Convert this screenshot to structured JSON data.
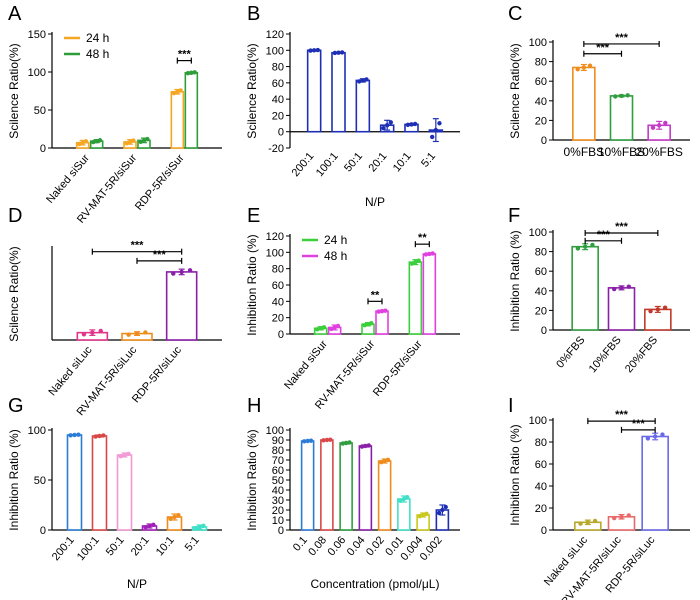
{
  "chart_data": [
    {
      "panel": "A",
      "type": "bar",
      "ylabel": "Scilence Ratio(%)",
      "xlabel": "",
      "ylim": [
        0,
        150
      ],
      "yticks": [
        0,
        50,
        100,
        150
      ],
      "categories": [
        "Naked siSur",
        "RV-MAT-5R/siSur",
        "RDP-5R/siSur"
      ],
      "legend": "top-left",
      "series": [
        {
          "name": "24 h",
          "color": "#f5a623",
          "values": [
            7,
            8,
            74
          ],
          "errors": [
            3,
            3,
            3
          ]
        },
        {
          "name": "48 h",
          "color": "#2e9e3b",
          "values": [
            9,
            10,
            99
          ],
          "errors": [
            2,
            3,
            1
          ]
        }
      ],
      "brackets": [
        {
          "label": "***",
          "from": [
            2,
            0
          ],
          "to": [
            2,
            1
          ],
          "y": 115
        }
      ]
    },
    {
      "panel": "B",
      "type": "bar",
      "ylabel": "Scilence Ratio(%)",
      "xlabel": "N/P",
      "ylim": [
        -20,
        120
      ],
      "yticks": [
        -20,
        0,
        20,
        40,
        60,
        80,
        100,
        120
      ],
      "categories": [
        "200:1",
        "100:1",
        "50:1",
        "20:1",
        "10:1",
        "5:1"
      ],
      "series": [
        {
          "color": "#1f2fb5",
          "values": [
            100,
            97,
            63,
            8,
            9,
            2
          ],
          "errors": [
            0.5,
            0.5,
            2,
            6,
            1,
            14
          ]
        }
      ],
      "brackets": []
    },
    {
      "panel": "C",
      "type": "bar",
      "ylabel": "Scilence Ratio(%)",
      "xlabel": "",
      "ylim": [
        0,
        100
      ],
      "yticks": [
        0,
        20,
        40,
        60,
        80,
        100
      ],
      "categories": [
        "0%FBS",
        "10%FBS",
        "20%FBS"
      ],
      "series": [
        {
          "colors": [
            "#f08c1c",
            "#2f9e3f",
            "#c63ac9"
          ],
          "values": [
            74,
            45,
            15
          ],
          "errors": [
            3,
            1,
            4
          ]
        }
      ],
      "brackets": [
        {
          "label": "***",
          "from": [
            0
          ],
          "to": [
            1
          ],
          "y": 88
        },
        {
          "label": "***",
          "from": [
            0
          ],
          "to": [
            2
          ],
          "y": 98
        }
      ]
    },
    {
      "panel": "D",
      "type": "bar",
      "ylabel": "Scilence Ratio(%)",
      "xlabel": "",
      "ylim": [
        0,
        100
      ],
      "yticks": [],
      "categories": [
        "Naked siLuc",
        "RV-MAT-5R/siLuc",
        "RDP-5R/siLuc"
      ],
      "series": [
        {
          "colors": [
            "#e0368a",
            "#f08c1c",
            "#8a1fa8"
          ],
          "values": [
            8,
            7,
            74
          ],
          "errors": [
            3,
            2,
            3
          ]
        }
      ],
      "brackets": [
        {
          "label": "***",
          "from": [
            0
          ],
          "to": [
            2
          ],
          "y": 96
        },
        {
          "label": "***",
          "from": [
            1
          ],
          "to": [
            2
          ],
          "y": 86
        }
      ]
    },
    {
      "panel": "E",
      "type": "bar",
      "ylabel": "Inhibition Ratio (%)",
      "xlabel": "",
      "ylim": [
        0,
        120
      ],
      "yticks": [
        0,
        20,
        40,
        60,
        80,
        100,
        120
      ],
      "categories": [
        "Naked siSur",
        "RV-MAT-5R/siSur",
        "RDP-5R/siSur"
      ],
      "legend": "top-left",
      "series": [
        {
          "name": "24 h",
          "color": "#3ccf3c",
          "values": [
            7,
            12,
            88
          ],
          "errors": [
            2,
            2,
            3
          ]
        },
        {
          "name": "48 h",
          "color": "#e040e0",
          "values": [
            8,
            28,
            98
          ],
          "errors": [
            3,
            1,
            1
          ]
        }
      ],
      "brackets": [
        {
          "label": "**",
          "from": [
            1,
            0
          ],
          "to": [
            1,
            1
          ],
          "y": 40
        },
        {
          "label": "**",
          "from": [
            2,
            0
          ],
          "to": [
            2,
            1
          ],
          "y": 110
        }
      ]
    },
    {
      "panel": "F",
      "type": "bar",
      "ylabel": "Inhibition Ratio (%)",
      "xlabel": "",
      "ylim": [
        0,
        100
      ],
      "yticks": [
        0,
        20,
        40,
        60,
        80,
        100
      ],
      "categories": [
        "0%FBS",
        "10%FBS",
        "20%FBS"
      ],
      "series": [
        {
          "colors": [
            "#2f9e3f",
            "#8a1fa8",
            "#c0392b"
          ],
          "values": [
            85,
            43,
            21
          ],
          "errors": [
            3,
            2,
            3
          ]
        }
      ],
      "brackets": [
        {
          "label": "***",
          "from": [
            0
          ],
          "to": [
            1
          ],
          "y": 91
        },
        {
          "label": "***",
          "from": [
            0
          ],
          "to": [
            2
          ],
          "y": 99
        }
      ]
    },
    {
      "panel": "G",
      "type": "bar",
      "ylabel": "Inhibition Ratio (%)",
      "xlabel": "N/P",
      "ylim": [
        0,
        100
      ],
      "yticks": [
        0,
        50,
        100
      ],
      "categories": [
        "200:1",
        "100:1",
        "50:1",
        "20:1",
        "10:1",
        "5:1"
      ],
      "series": [
        {
          "colors": [
            "#2b7cd6",
            "#d94848",
            "#f29ad6",
            "#a020b8",
            "#f08c1c",
            "#40e0c8"
          ],
          "values": [
            95,
            94,
            75,
            4,
            13,
            3
          ],
          "errors": [
            0.5,
            1,
            2,
            2,
            3,
            2
          ]
        }
      ],
      "brackets": []
    },
    {
      "panel": "H",
      "type": "bar",
      "ylabel": "Inhibition Ratio (%)",
      "xlabel": "Concentration (pmol/μL)",
      "ylim": [
        0,
        100
      ],
      "yticks": [
        0,
        10,
        20,
        30,
        40,
        50,
        60,
        70,
        80,
        90,
        100
      ],
      "categories": [
        "0.1",
        "0.08",
        "0.06",
        "0.04",
        "0.02",
        "0.01",
        "0.004",
        "0.002"
      ],
      "series": [
        {
          "colors": [
            "#2b7cd6",
            "#d94848",
            "#2f9e3f",
            "#8a1fa8",
            "#f08c1c",
            "#40e0c8",
            "#c8c81e",
            "#1f2fb5"
          ],
          "values": [
            89,
            90,
            87,
            84,
            69,
            31,
            15,
            20
          ],
          "errors": [
            0.5,
            0.5,
            1,
            1,
            2,
            3,
            2,
            5
          ]
        }
      ],
      "brackets": []
    },
    {
      "panel": "I",
      "type": "bar",
      "ylabel": "Inhibition Ratio (%)",
      "xlabel": "",
      "ylim": [
        0,
        100
      ],
      "yticks": [
        0,
        20,
        40,
        60,
        80,
        100
      ],
      "categories": [
        "Naked siLuc",
        "RV-MAT-5R/siLuc",
        "RDP-5R/siLuc"
      ],
      "series": [
        {
          "colors": [
            "#b8a82a",
            "#e86a6a",
            "#6a6ae8"
          ],
          "values": [
            7,
            12,
            85
          ],
          "errors": [
            2,
            2,
            3
          ]
        }
      ],
      "brackets": [
        {
          "label": "***",
          "from": [
            0
          ],
          "to": [
            2
          ],
          "y": 99
        },
        {
          "label": "***",
          "from": [
            1
          ],
          "to": [
            2
          ],
          "y": 91
        }
      ]
    }
  ]
}
